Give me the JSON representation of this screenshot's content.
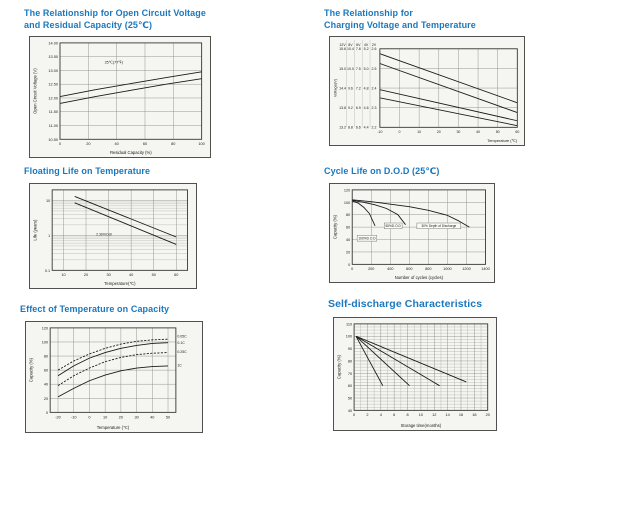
{
  "page": {
    "background": "#ffffff",
    "colors": {
      "title": "#1b78be",
      "figure_bg": "#f5f5f1",
      "line": "#1a1a1a",
      "grid": "#9a9a96"
    }
  },
  "chart_data": [
    {
      "id": "open-circuit-voltage-vs-residual-capacity",
      "type": "line",
      "title": "The Relationship for Open Circuit Voltage and Residual Capacity (25℃)",
      "title_lines": [
        "The Relationship for Open Circuit Voltage",
        "and Residual Capacity (25℃)"
      ],
      "xlabel": "Residual Capacity (%)",
      "ylabel": "Open Circuit Voltage (V)",
      "xlim": [
        0,
        100
      ],
      "ylim": [
        10.5,
        14
      ],
      "xticks": [
        0,
        20,
        40,
        60,
        80,
        100
      ],
      "yticks": [
        {
          "v": 14,
          "label": "14.00"
        },
        {
          "v": 13.5,
          "label": "13.50"
        },
        {
          "v": 13,
          "label": "13.00"
        },
        {
          "v": 12.5,
          "label": "12.50"
        },
        {
          "v": 12,
          "label": "12.00"
        },
        {
          "v": 11.5,
          "label": "11.50"
        },
        {
          "v": 11,
          "label": "11.00"
        },
        {
          "v": 10.5,
          "label": "10.50"
        }
      ],
      "series": [
        {
          "name": "upper-line",
          "points": [
            [
              0,
              12.05
            ],
            [
              25,
              12.3
            ],
            [
              50,
              12.52
            ],
            [
              75,
              12.74
            ],
            [
              100,
              12.95
            ]
          ]
        },
        {
          "name": "lower-line",
          "points": [
            [
              0,
              11.8
            ],
            [
              25,
              12.05
            ],
            [
              50,
              12.28
            ],
            [
              75,
              12.5
            ],
            [
              100,
              12.7
            ]
          ]
        }
      ],
      "annotations": [
        {
          "x": 38,
          "y": 13.25,
          "text": "25℃(77℉)",
          "size": 3.8
        }
      ]
    },
    {
      "id": "charging-voltage-vs-temperature",
      "type": "line",
      "title": "The Relationship for Charging Voltage and Temperature",
      "title_lines": [
        "The Relationship for",
        "Charging Voltage and Temperature"
      ],
      "xlabel": "Temperature (℃)",
      "ylabel": "Voltage(V)",
      "xlim": [
        -10,
        60
      ],
      "ylim": [
        13.2,
        15.6
      ],
      "xticks": [
        -10,
        0,
        10,
        20,
        30,
        40,
        50,
        60
      ],
      "ycolumns": {
        "headers": [
          "12V",
          "8V",
          "6V",
          "4V",
          "2V"
        ],
        "rows": [
          {
            "v": 15.6,
            "labels": [
              "15.6",
              "10.4",
              "7.8",
              "5.2",
              "2.6"
            ]
          },
          {
            "v": 15.0,
            "labels": [
              "15.0",
              "10.0",
              "7.5",
              "5.0",
              "2.5"
            ]
          },
          {
            "v": 14.4,
            "labels": [
              "14.4",
              "9.6",
              "7.2",
              "4.8",
              "2.4"
            ]
          },
          {
            "v": 13.8,
            "labels": [
              "13.8",
              "9.2",
              "6.9",
              "4.6",
              "2.3"
            ]
          },
          {
            "v": 13.2,
            "labels": [
              "13.2",
              "8.8",
              "6.6",
              "4.4",
              "2.2"
            ]
          }
        ]
      },
      "series": [
        {
          "name": "upper-band-top",
          "points": [
            [
              -10,
              15.45
            ],
            [
              60,
              13.95
            ]
          ]
        },
        {
          "name": "upper-band-bottom",
          "points": [
            [
              -10,
              15.15
            ],
            [
              60,
              13.65
            ]
          ]
        },
        {
          "name": "lower-band-top",
          "points": [
            [
              -10,
              14.35
            ],
            [
              60,
              13.4
            ]
          ]
        },
        {
          "name": "lower-band-bottom",
          "points": [
            [
              -10,
              14.1
            ],
            [
              60,
              13.25
            ]
          ]
        }
      ]
    },
    {
      "id": "floating-life-on-temperature",
      "type": "line",
      "title": "Floating Life on Temperature",
      "title_lines": [
        "Floating Life on Temperature"
      ],
      "xlabel": "Temperature(℃)",
      "ylabel": "Life (years)",
      "xlim": [
        5,
        65
      ],
      "ylim": [
        0.1,
        20
      ],
      "yscale": "log",
      "xticks": [
        10,
        20,
        30,
        40,
        50,
        60
      ],
      "yticks": [
        {
          "v": 10,
          "label": "10"
        },
        {
          "v": 1,
          "label": "1"
        },
        {
          "v": 0.1,
          "label": "0.1"
        }
      ],
      "series": [
        {
          "name": "band-top",
          "points": [
            [
              15,
              13
            ],
            [
              60,
              0.9
            ]
          ]
        },
        {
          "name": "band-bottom",
          "points": [
            [
              15,
              8.5
            ],
            [
              60,
              0.55
            ]
          ]
        }
      ],
      "annotations": [
        {
          "x": 28,
          "y": 1.0,
          "text": "2.30V/Cell",
          "size": 3.5
        }
      ]
    },
    {
      "id": "cycle-life-on-dod",
      "type": "line",
      "title": "Cycle Life on D.O.D (25℃)",
      "title_lines": [
        "Cycle Life on D.O.D (25℃)"
      ],
      "xlabel": "Number of cycles (cycles)",
      "ylabel": "Capacity (%)",
      "xlim": [
        0,
        1400
      ],
      "ylim": [
        0,
        120
      ],
      "xticks": [
        0,
        200,
        400,
        600,
        800,
        1000,
        1200,
        1400
      ],
      "yticks": [
        0,
        20,
        40,
        60,
        80,
        100,
        120
      ],
      "series": [
        {
          "name": "100%D.O.D",
          "points": [
            [
              0,
              102
            ],
            [
              60,
              99
            ],
            [
              120,
              92
            ],
            [
              180,
              82
            ],
            [
              240,
              62
            ]
          ]
        },
        {
          "name": "50%D.O.D",
          "points": [
            [
              0,
              103
            ],
            [
              120,
              100
            ],
            [
              240,
              96
            ],
            [
              360,
              90
            ],
            [
              480,
              80
            ],
            [
              560,
              64
            ]
          ]
        },
        {
          "name": "30% Depth of Discharge",
          "points": [
            [
              0,
              104
            ],
            [
              200,
              101
            ],
            [
              400,
              97
            ],
            [
              600,
              93
            ],
            [
              800,
              87
            ],
            [
              1000,
              79
            ],
            [
              1120,
              70
            ],
            [
              1230,
              60
            ]
          ]
        }
      ],
      "annotations": [
        {
          "x": 155,
          "y": 40,
          "text": "100%D.O.D",
          "boxed": true,
          "size": 3.3
        },
        {
          "x": 430,
          "y": 60,
          "text": "50%D.O.D",
          "boxed": true,
          "size": 3.3
        },
        {
          "x": 910,
          "y": 60,
          "text": "30% Depth of Discharge",
          "boxed": true,
          "size": 3.3
        }
      ]
    },
    {
      "id": "effect-of-temperature-on-capacity",
      "type": "line",
      "title": "Effect of Temperature on Capacity",
      "title_lines": [
        "Effect of Temperature on Capacity"
      ],
      "xlabel": "Temperature (℃)",
      "ylabel": "Capacity (%)",
      "xlim": [
        -25,
        55
      ],
      "ylim": [
        0,
        120
      ],
      "xticks": [
        -20,
        -10,
        0,
        10,
        20,
        30,
        40,
        50
      ],
      "yticks": [
        0,
        20,
        40,
        60,
        80,
        100,
        120
      ],
      "series": [
        {
          "name": "0.05C",
          "dash": true,
          "points": [
            [
              -20,
              60
            ],
            [
              -10,
              73
            ],
            [
              0,
              83
            ],
            [
              10,
              91
            ],
            [
              20,
              97
            ],
            [
              30,
              101
            ],
            [
              40,
              103
            ],
            [
              50,
              104
            ]
          ]
        },
        {
          "name": "0.1C",
          "points": [
            [
              -20,
              52
            ],
            [
              -10,
              66
            ],
            [
              0,
              77
            ],
            [
              10,
              85
            ],
            [
              20,
              91
            ],
            [
              30,
              95
            ],
            [
              40,
              98
            ],
            [
              50,
              99
            ]
          ]
        },
        {
          "name": "0.25C",
          "dash": true,
          "points": [
            [
              -20,
              38
            ],
            [
              -10,
              52
            ],
            [
              0,
              63
            ],
            [
              10,
              72
            ],
            [
              20,
              78
            ],
            [
              30,
              82
            ],
            [
              40,
              84
            ],
            [
              50,
              85
            ]
          ]
        },
        {
          "name": "1C",
          "points": [
            [
              -20,
              22
            ],
            [
              -10,
              34
            ],
            [
              0,
              45
            ],
            [
              10,
              53
            ],
            [
              20,
              59
            ],
            [
              30,
              63
            ],
            [
              40,
              65
            ],
            [
              50,
              66
            ]
          ]
        }
      ],
      "annotations": [
        {
          "x": 55,
          "y": 106,
          "dx": 1.5,
          "anchor": "start",
          "text": "0.05C",
          "size": 3.6
        },
        {
          "x": 55,
          "y": 97,
          "dx": 1.5,
          "anchor": "start",
          "text": "0.1C",
          "size": 3.6
        },
        {
          "x": 55,
          "y": 84,
          "dx": 1.5,
          "anchor": "start",
          "text": "0.25C",
          "size": 3.6
        },
        {
          "x": 55,
          "y": 65,
          "dx": 1.5,
          "anchor": "start",
          "text": "1C",
          "size": 3.6
        }
      ]
    },
    {
      "id": "self-discharge-characteristics",
      "type": "line",
      "title": "Self-discharge Characteristics",
      "title_lines": [
        "Self-discharge Characteristics"
      ],
      "xlabel": "Storage time(months)",
      "ylabel": "Capacity (%)",
      "xlim": [
        0,
        20
      ],
      "ylim": [
        40,
        110
      ],
      "xticks": [
        0,
        2,
        4,
        6,
        8,
        10,
        12,
        14,
        16,
        18,
        20
      ],
      "yticks": [
        40,
        50,
        60,
        70,
        80,
        90,
        100,
        110
      ],
      "series": [
        {
          "name": "line-1",
          "points": [
            [
              0.3,
              100
            ],
            [
              4.3,
              60
            ]
          ]
        },
        {
          "name": "line-2",
          "points": [
            [
              0.3,
              100
            ],
            [
              8.3,
              60
            ]
          ]
        },
        {
          "name": "line-3",
          "points": [
            [
              0.3,
              100
            ],
            [
              12.8,
              60
            ]
          ]
        },
        {
          "name": "line-4",
          "points": [
            [
              0.3,
              100
            ],
            [
              16.8,
              63
            ]
          ]
        }
      ]
    }
  ]
}
